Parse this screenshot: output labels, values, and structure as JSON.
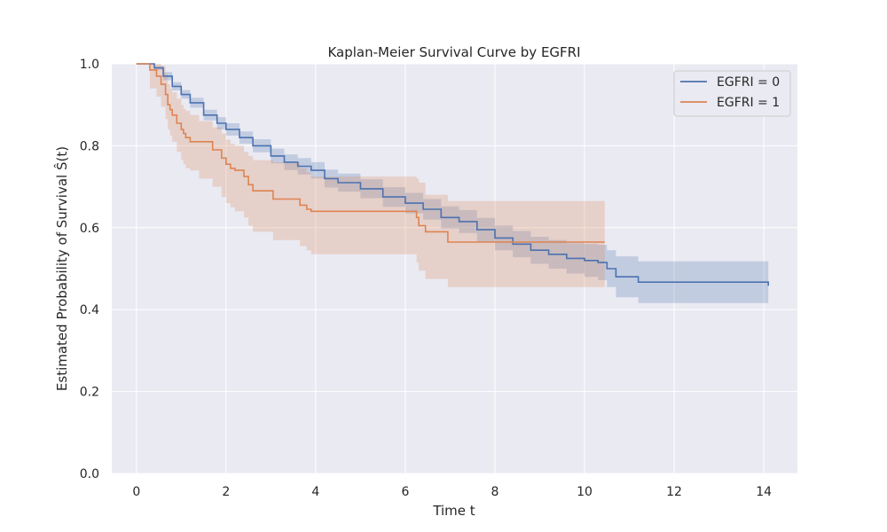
{
  "chart_data": {
    "type": "line",
    "title": "Kaplan-Meier Survival Curve by EGFRI",
    "xlabel": "Time t",
    "ylabel": "Estimated Probability of Survival Ŝ(t)",
    "xlim": [
      -0.55,
      14.75
    ],
    "ylim": [
      0.0,
      1.0
    ],
    "xticks": [
      0,
      2,
      4,
      6,
      8,
      10,
      12,
      14
    ],
    "xtick_labels": [
      "0",
      "2",
      "4",
      "6",
      "8",
      "10",
      "12",
      "14"
    ],
    "yticks": [
      0.0,
      0.2,
      0.4,
      0.6,
      0.8,
      1.0
    ],
    "ytick_labels": [
      "0.0",
      "0.2",
      "0.4",
      "0.6",
      "0.8",
      "1.0"
    ],
    "grid": true,
    "legend_position": "top-right",
    "series": [
      {
        "name": "EGFRI = 0",
        "color": "#4c72b0",
        "band_color": "#4c72b0",
        "x": [
          0.0,
          0.25,
          0.4,
          0.6,
          0.8,
          1.0,
          1.2,
          1.5,
          1.8,
          2.0,
          2.3,
          2.6,
          3.0,
          3.3,
          3.6,
          3.9,
          4.2,
          4.5,
          5.0,
          5.5,
          6.0,
          6.4,
          6.8,
          7.2,
          7.6,
          8.0,
          8.4,
          8.8,
          9.2,
          9.6,
          10.0,
          10.3,
          10.5,
          10.7,
          11.2,
          14.1
        ],
        "y": [
          1.0,
          1.0,
          0.99,
          0.97,
          0.945,
          0.925,
          0.905,
          0.875,
          0.855,
          0.84,
          0.82,
          0.8,
          0.775,
          0.76,
          0.75,
          0.74,
          0.72,
          0.71,
          0.695,
          0.675,
          0.66,
          0.645,
          0.625,
          0.615,
          0.595,
          0.575,
          0.56,
          0.545,
          0.535,
          0.525,
          0.52,
          0.515,
          0.5,
          0.48,
          0.467,
          0.458
        ],
        "lower": [
          1.0,
          1.0,
          0.985,
          0.96,
          0.935,
          0.915,
          0.893,
          0.862,
          0.84,
          0.825,
          0.805,
          0.784,
          0.757,
          0.741,
          0.73,
          0.72,
          0.698,
          0.688,
          0.672,
          0.651,
          0.635,
          0.62,
          0.598,
          0.587,
          0.566,
          0.545,
          0.528,
          0.512,
          0.5,
          0.488,
          0.48,
          0.472,
          0.455,
          0.43,
          0.416,
          0.412
        ],
        "upper": [
          1.0,
          1.0,
          0.995,
          0.98,
          0.955,
          0.936,
          0.917,
          0.888,
          0.87,
          0.855,
          0.835,
          0.816,
          0.793,
          0.779,
          0.77,
          0.76,
          0.742,
          0.732,
          0.718,
          0.699,
          0.685,
          0.67,
          0.652,
          0.643,
          0.624,
          0.605,
          0.592,
          0.578,
          0.57,
          0.562,
          0.56,
          0.558,
          0.545,
          0.53,
          0.518,
          0.502
        ]
      },
      {
        "name": "EGFRI = 1",
        "color": "#dd8452",
        "band_color": "#dd8452",
        "x": [
          0.0,
          0.3,
          0.45,
          0.55,
          0.65,
          0.7,
          0.75,
          0.8,
          0.9,
          1.0,
          1.05,
          1.1,
          1.2,
          1.4,
          1.7,
          1.9,
          2.0,
          2.1,
          2.2,
          2.4,
          2.5,
          2.6,
          3.05,
          3.65,
          3.8,
          3.9,
          6.25,
          6.3,
          6.45,
          6.95,
          10.45
        ],
        "y": [
          1.0,
          0.985,
          0.97,
          0.95,
          0.925,
          0.9,
          0.888,
          0.875,
          0.855,
          0.84,
          0.83,
          0.82,
          0.81,
          0.81,
          0.79,
          0.77,
          0.755,
          0.745,
          0.74,
          0.725,
          0.705,
          0.69,
          0.67,
          0.655,
          0.645,
          0.64,
          0.625,
          0.605,
          0.59,
          0.565,
          0.565
        ],
        "lower": [
          1.0,
          0.94,
          0.92,
          0.895,
          0.865,
          0.84,
          0.825,
          0.81,
          0.785,
          0.765,
          0.755,
          0.745,
          0.74,
          0.72,
          0.7,
          0.675,
          0.66,
          0.65,
          0.64,
          0.625,
          0.605,
          0.59,
          0.57,
          0.555,
          0.545,
          0.535,
          0.515,
          0.495,
          0.475,
          0.455,
          0.455
        ],
        "upper": [
          1.0,
          1.0,
          1.0,
          0.995,
          0.975,
          0.95,
          0.94,
          0.93,
          0.915,
          0.9,
          0.89,
          0.885,
          0.875,
          0.86,
          0.845,
          0.83,
          0.815,
          0.805,
          0.8,
          0.785,
          0.775,
          0.765,
          0.76,
          0.745,
          0.735,
          0.725,
          0.72,
          0.71,
          0.68,
          0.665,
          0.665
        ]
      }
    ]
  }
}
